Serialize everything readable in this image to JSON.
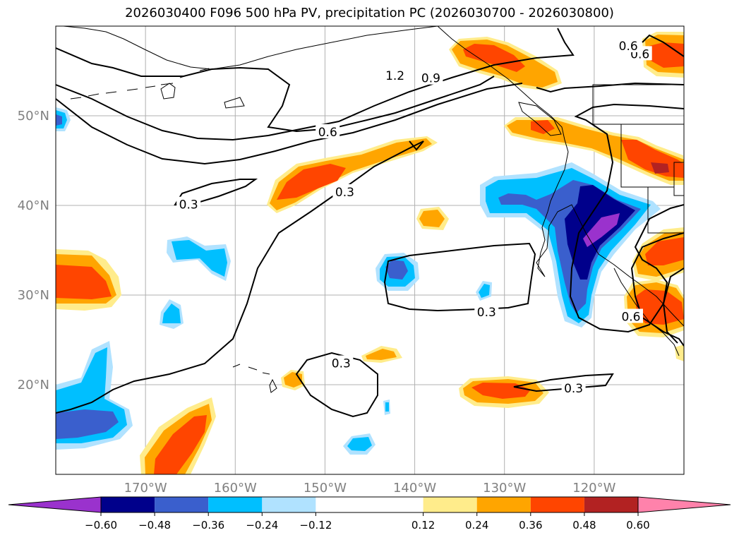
{
  "chart_data": {
    "type": "contour-map",
    "title": "2026030400 F096 500 hPa PV, precipitation PC (2026030700 - 2026030800)",
    "xlim": [
      -180,
      -110
    ],
    "ylim": [
      10,
      60
    ],
    "x_ticks": [
      -170,
      -160,
      -150,
      -140,
      -130,
      -120
    ],
    "x_tick_labels": [
      "170°W",
      "160°W",
      "150°W",
      "140°W",
      "130°W",
      "120°W"
    ],
    "y_ticks": [
      20,
      30,
      40,
      50
    ],
    "y_tick_labels": [
      "20°N",
      "30°N",
      "40°N",
      "50°N"
    ],
    "grid": true,
    "colorbar": {
      "orientation": "horizontal",
      "extend": "both",
      "levels": [
        -0.72,
        -0.6,
        -0.48,
        -0.36,
        -0.24,
        -0.12,
        0.12,
        0.24,
        0.36,
        0.48,
        0.6,
        0.72
      ],
      "colors": [
        "#9a32cd",
        "#00008b",
        "#3a5fcd",
        "#00bfff",
        "#b0e2ff",
        "#ffffff",
        "#ffec8b",
        "#ffa500",
        "#ff4500",
        "#b22222",
        "#ff82ab"
      ],
      "tick_values": [
        -0.6,
        -0.48,
        -0.36,
        -0.24,
        -0.12,
        0.12,
        0.24,
        0.36,
        0.48,
        0.6
      ],
      "tick_labels": [
        "−0.60",
        "−0.48",
        "−0.36",
        "−0.24",
        "−0.12",
        "0.12",
        "0.24",
        "0.36",
        "0.48",
        "0.60"
      ]
    },
    "contour_labels": [
      {
        "text": "0.3",
        "lon": -165.2,
        "lat": 40.1
      },
      {
        "text": "0.3",
        "lon": -147.8,
        "lat": 41.5
      },
      {
        "text": "0.3",
        "lon": -132.0,
        "lat": 28.1
      },
      {
        "text": "0.3",
        "lon": -148.2,
        "lat": 22.4
      },
      {
        "text": "0.3",
        "lon": -122.3,
        "lat": 19.6
      },
      {
        "text": "0.6",
        "lon": -149.7,
        "lat": 48.2
      },
      {
        "text": "0.9",
        "lon": -138.2,
        "lat": 54.2
      },
      {
        "text": "1.2",
        "lon": -142.2,
        "lat": 54.5
      },
      {
        "text": "0.6",
        "lon": -114.9,
        "lat": 56.9
      },
      {
        "text": "0.6",
        "lon": -116.2,
        "lat": 57.8
      },
      {
        "text": "0.6",
        "lon": -115.9,
        "lat": 27.6
      }
    ]
  }
}
